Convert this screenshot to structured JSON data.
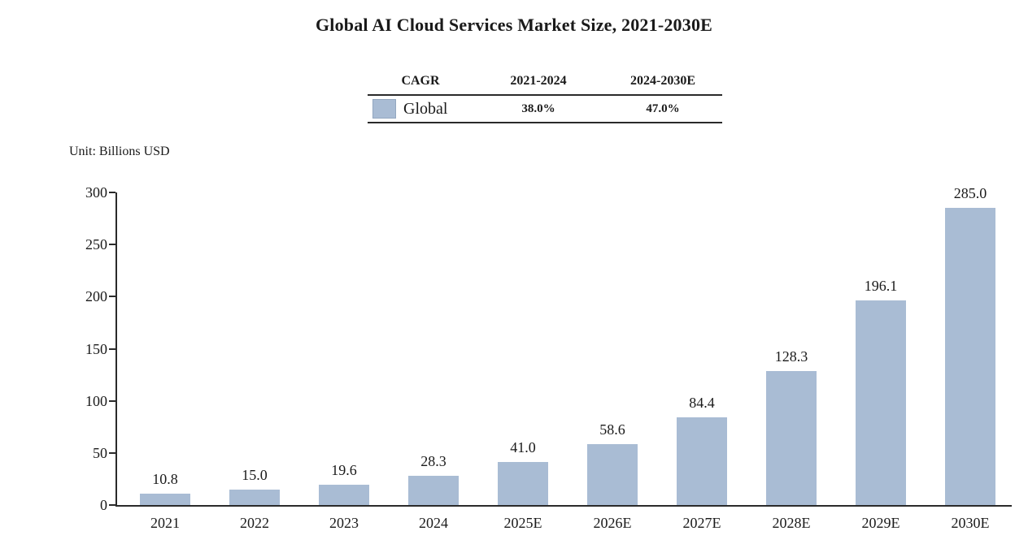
{
  "title": "Global AI Cloud Services Market Size, 2021-2030E",
  "unit_label": "Unit: Billions USD",
  "cagr_table": {
    "headers": [
      "CAGR",
      "2021-2024",
      "2024-2030E"
    ],
    "rows": [
      {
        "label": "Global",
        "swatch_color": "#a9bcd4",
        "values": [
          "38.0%",
          "47.0%"
        ]
      }
    ]
  },
  "chart_data": {
    "type": "bar",
    "title": "Global AI Cloud Services Market Size, 2021-2030E",
    "series_name": "Global",
    "categories": [
      "2021",
      "2022",
      "2023",
      "2024",
      "2025E",
      "2026E",
      "2027E",
      "2028E",
      "2029E",
      "2030E"
    ],
    "values": [
      10.8,
      15.0,
      19.6,
      28.3,
      41.0,
      58.6,
      84.4,
      128.3,
      196.1,
      285.0
    ],
    "value_labels": [
      "10.8",
      "15.0",
      "19.6",
      "28.3",
      "41.0",
      "58.6",
      "84.4",
      "128.3",
      "196.1",
      "285.0"
    ],
    "xlabel": "",
    "ylabel": "Unit: Billions USD",
    "ylim": [
      0,
      300
    ],
    "yticks": [
      0,
      50,
      100,
      150,
      200,
      250,
      300
    ],
    "grid": false,
    "legend_position": "top-table",
    "bar_color": "#a9bcd4"
  },
  "colors": {
    "background": "#ffffff",
    "bar": "#a9bcd4",
    "axis": "#2a2a2a",
    "text": "#1a1a1a",
    "table_line": "#2a2a2a"
  }
}
